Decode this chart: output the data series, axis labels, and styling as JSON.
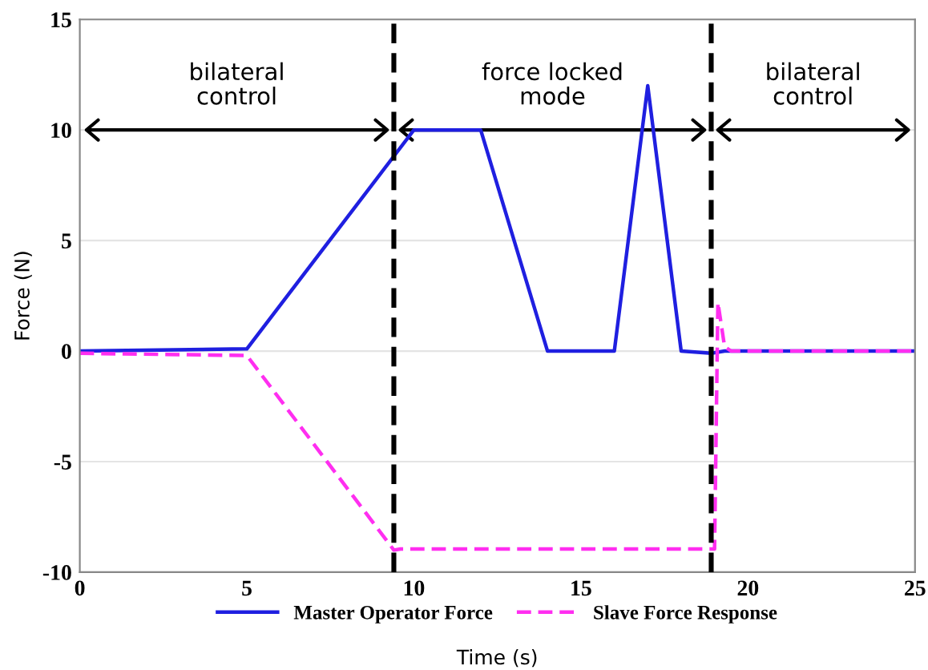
{
  "chart_data": {
    "type": "line",
    "xlabel": "Time (s)",
    "ylabel": "Force (N)",
    "xlim": [
      0,
      25
    ],
    "xticks": [
      0,
      5,
      10,
      15,
      20,
      25
    ],
    "ylim": [
      -10,
      15
    ],
    "yticks": [
      -10,
      -5,
      0,
      5,
      10,
      15
    ],
    "grid": "y",
    "legend": "bottom",
    "series": [
      {
        "name": "Master Operator Force",
        "color": "#1f1fe0",
        "line_style": "solid",
        "x": [
          0,
          5,
          10,
          12,
          14,
          16,
          17,
          18,
          18.9,
          19.3,
          25
        ],
        "values": [
          0,
          0.1,
          10,
          10,
          0,
          0,
          12,
          0,
          -0.1,
          0,
          0
        ]
      },
      {
        "name": "Slave Force Response",
        "color": "#ff2ef0",
        "line_style": "dashed",
        "x": [
          0,
          5,
          9.4,
          9.6,
          19,
          19.1,
          19.3,
          19.5,
          25
        ],
        "values": [
          -0.1,
          -0.2,
          -9,
          -8.95,
          -8.95,
          2.2,
          0.2,
          0,
          0
        ]
      }
    ],
    "ref_lines": [
      {
        "axis": "x",
        "value": 9.4,
        "color": "#000000",
        "line_style": "dashed"
      },
      {
        "axis": "x",
        "value": 18.9,
        "color": "#000000",
        "line_style": "dashed"
      }
    ],
    "annotations": [
      "bilateral\ncontrol",
      "force locked\nmode",
      "bilateral\ncontrol"
    ]
  }
}
